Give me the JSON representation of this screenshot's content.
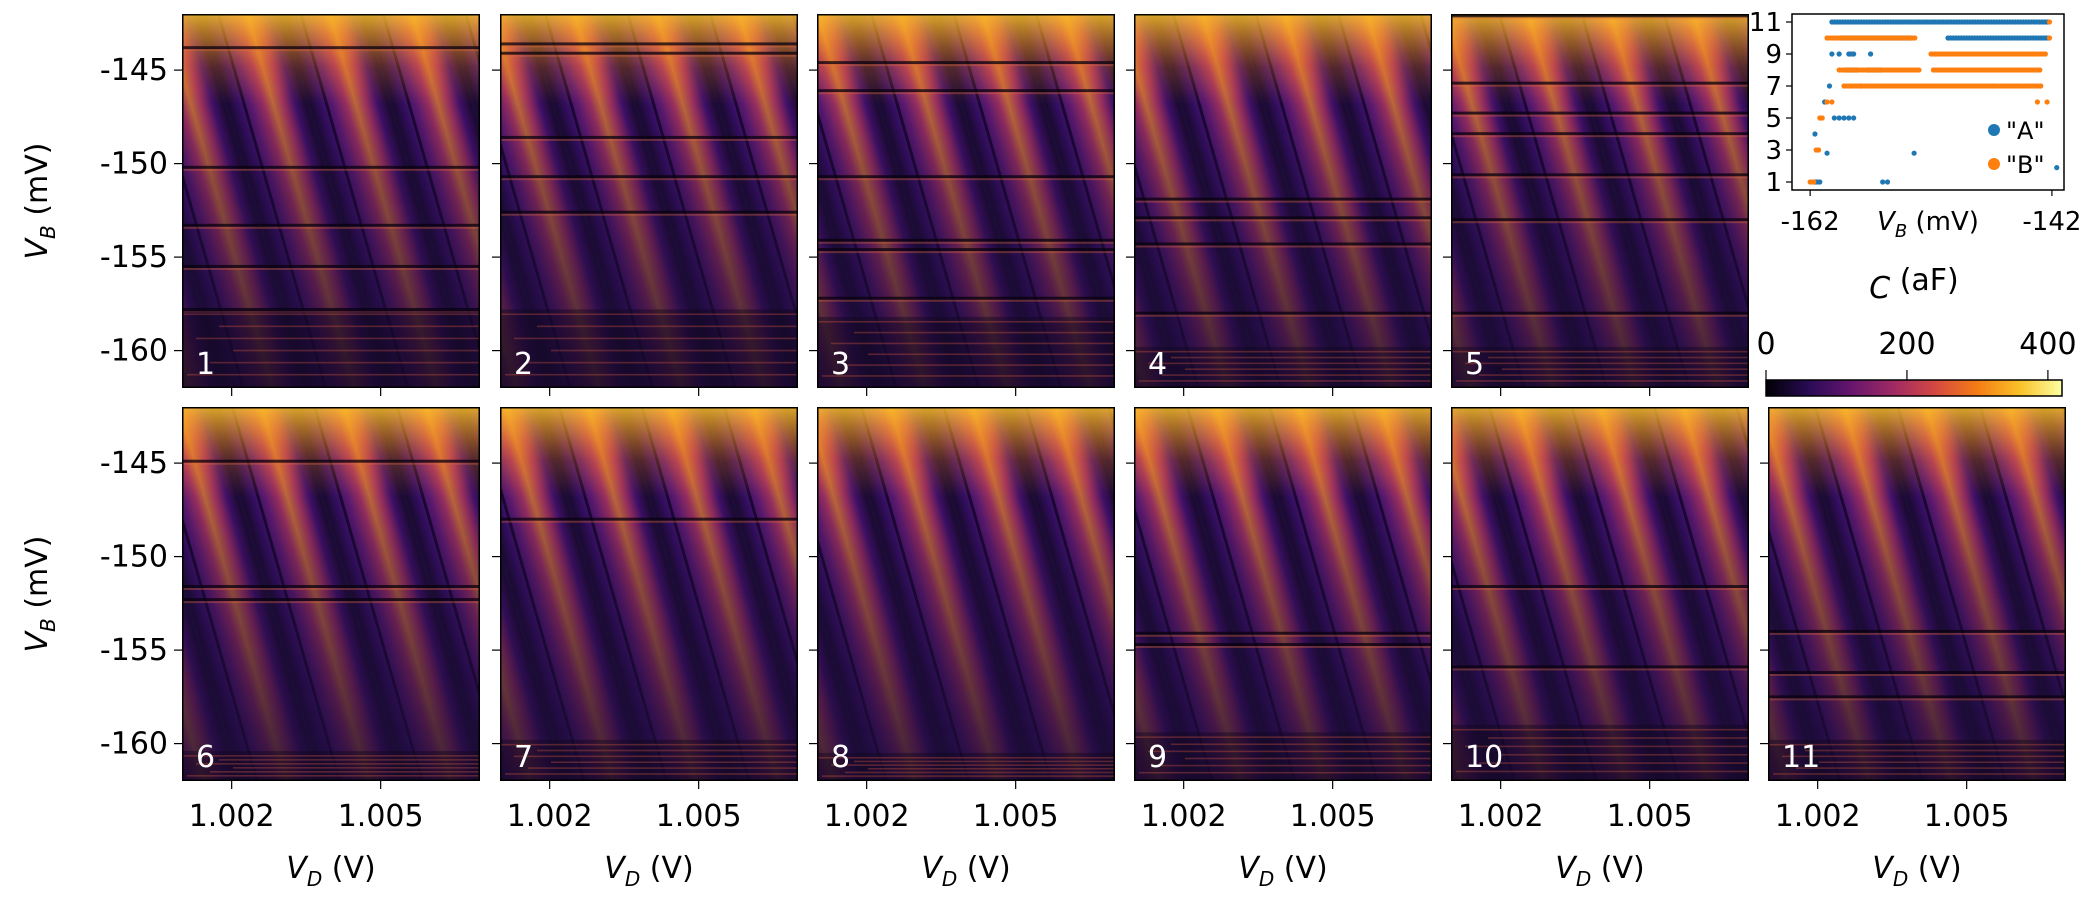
{
  "chart_data": [
    {
      "type": "heatmap",
      "panels": [
        {
          "label": "1",
          "row": 0,
          "col": 0,
          "events": [
            143.8,
            150.2,
            153.3,
            155.5,
            157.8
          ],
          "charge_noise_below": 157.8
        },
        {
          "label": "2",
          "row": 0,
          "col": 1,
          "events": [
            143.6,
            144.1,
            148.6,
            150.7,
            152.6
          ],
          "charge_noise_below": 157.8
        },
        {
          "label": "3",
          "row": 0,
          "col": 2,
          "events": [
            144.6,
            146.1,
            150.7,
            154.1,
            154.6,
            157.2
          ],
          "charge_noise_below": 158.2
        },
        {
          "label": "4",
          "row": 0,
          "col": 3,
          "events": [
            151.9,
            152.9,
            154.3,
            158.0
          ],
          "charge_noise_below": 159.8
        },
        {
          "label": "5",
          "row": 0,
          "col": 4,
          "events": [
            142.1,
            145.7,
            147.3,
            148.4,
            150.6,
            153.0,
            158.0
          ],
          "charge_noise_below": 159.8
        },
        {
          "label": "6",
          "row": 1,
          "col": 0,
          "events": [
            144.9,
            151.6,
            152.3
          ],
          "charge_noise_below": 160.4
        },
        {
          "label": "7",
          "row": 1,
          "col": 1,
          "events": [
            148.0
          ],
          "charge_noise_below": 159.8
        },
        {
          "label": "8",
          "row": 1,
          "col": 2,
          "events": [],
          "charge_noise_below": 160.5
        },
        {
          "label": "9",
          "row": 1,
          "col": 3,
          "events": [
            154.1,
            154.7
          ],
          "charge_noise_below": 159.4
        },
        {
          "label": "10",
          "row": 1,
          "col": 4,
          "events": [
            151.6,
            155.9
          ],
          "charge_noise_below": 159.0
        },
        {
          "label": "11",
          "row": 1,
          "col": 5,
          "events": [
            154.0,
            156.2,
            157.5
          ],
          "charge_noise_below": 159.8
        }
      ],
      "x_ticks": [
        "1.002",
        "1.005"
      ],
      "x_tick_values": [
        1.002,
        1.005
      ],
      "xlim": [
        1.001,
        1.007
      ],
      "xlabel_var": "V",
      "xlabel_sub": "D",
      "xlabel_unit": " (V)",
      "y_ticks": [
        "-145",
        "-150",
        "-155",
        "-160"
      ],
      "y_tick_values": [
        -145,
        -150,
        -155,
        -160
      ],
      "ylim": [
        -162,
        -142
      ],
      "ylabel_var": "V",
      "ylabel_sub": "B",
      "ylabel_unit": " (mV)",
      "line_slope_mV_per_mV": -0.28,
      "line_spacing_V": 0.00166,
      "colorbar": {
        "label_var": "C",
        "label_unit": " (aF)",
        "ticks": [
          "0",
          "200",
          "400"
        ],
        "tick_values": [
          0,
          200,
          400
        ],
        "range": [
          0,
          420
        ],
        "colormap": [
          "#000004",
          "#280b54",
          "#65156e",
          "#9f2a63",
          "#d44842",
          "#f57d15",
          "#fac127",
          "#fcffa4"
        ]
      }
    },
    {
      "type": "scatter",
      "xlim": [
        -163.5,
        -141
      ],
      "ylim": [
        0.5,
        11.5
      ],
      "x_ticks": [
        "-162",
        "-142"
      ],
      "x_tick_values": [
        -162,
        -142
      ],
      "y_ticks": [
        "1",
        "3",
        "5",
        "7",
        "9",
        "11"
      ],
      "y_tick_values": [
        1,
        3,
        5,
        7,
        9,
        11
      ],
      "xlabel_var": "V",
      "xlabel_sub": "B",
      "xlabel_unit": " (mV)",
      "legend_placement": "bottom-right",
      "series": [
        {
          "name": "\"A\"",
          "color": "#1f77b4",
          "points": [
            [
              -161.6,
              1
            ],
            [
              -161.4,
              1
            ],
            [
              -161.2,
              1
            ],
            [
              -156.0,
              1
            ],
            [
              -155.6,
              1
            ],
            [
              -153.4,
              2.8
            ],
            [
              -160.6,
              2.8
            ],
            [
              -161.6,
              4
            ],
            [
              -160.0,
              5
            ],
            [
              -159.6,
              5
            ],
            [
              -159.2,
              5
            ],
            [
              -158.8,
              5
            ],
            [
              -158.4,
              5
            ],
            [
              -160.8,
              6
            ],
            [
              -160.4,
              7
            ],
            [
              -160.2,
              9
            ],
            [
              -159.6,
              9
            ],
            [
              -158.8,
              9
            ],
            [
              -158.6,
              9
            ],
            [
              -158.4,
              9
            ],
            [
              -157.0,
              9
            ],
            [
              -141.6,
              1.9
            ]
          ],
          "segments": [
            [
              -160.2,
              -142.2,
              11
            ],
            [
              -159.4,
              -153.6,
              10
            ],
            [
              -150.6,
              -142.2,
              10
            ],
            [
              -159.0,
              -158.0,
              8
            ],
            [
              -157.2,
              -156.0,
              8
            ]
          ]
        },
        {
          "name": "\"B\"",
          "color": "#ff7f0e",
          "points": [
            [
              -162.0,
              1
            ],
            [
              -161.8,
              1
            ],
            [
              -161.7,
              1
            ],
            [
              -161.5,
              3
            ],
            [
              -161.3,
              3
            ],
            [
              -161.0,
              5
            ],
            [
              -161.2,
              5
            ],
            [
              -160.6,
              6
            ],
            [
              -160.2,
              6
            ],
            [
              -157.8,
              7
            ],
            [
              -151.6,
              9
            ],
            [
              -143.2,
              6
            ],
            [
              -142.4,
              6
            ],
            [
              -142.2,
              11
            ],
            [
              -142.2,
              10
            ]
          ],
          "segments": [
            [
              -159.6,
              -152.8,
              8
            ],
            [
              -151.8,
              -142.8,
              8
            ],
            [
              -159.2,
              -142.8,
              7
            ],
            [
              -160.6,
              -153.2,
              10
            ],
            [
              -152.0,
              -142.4,
              9
            ]
          ]
        }
      ]
    }
  ]
}
